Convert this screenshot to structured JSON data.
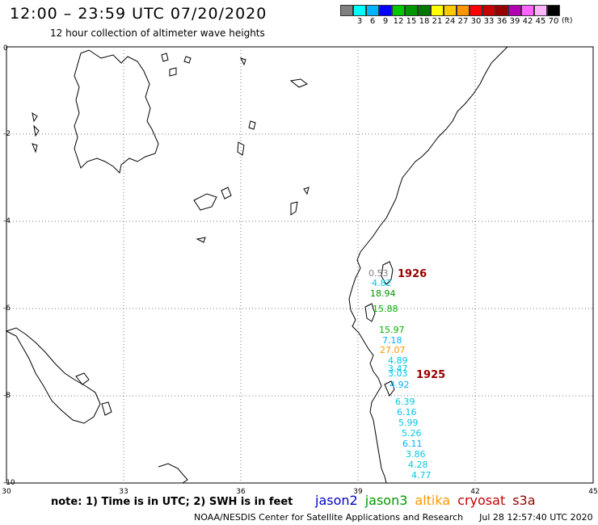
{
  "header": {
    "title": "12:00 – 23:59 UTC 07/20/2020",
    "subtitle": "12 hour collection of altimeter wave heights"
  },
  "colorbar": {
    "colors": [
      "#7f7f7f",
      "#00ffff",
      "#00b4ff",
      "#0000ff",
      "#00c800",
      "#009600",
      "#007800",
      "#ffff00",
      "#ffc800",
      "#ff9600",
      "#ff0000",
      "#c80000",
      "#960000",
      "#b400b4",
      "#ff64ff",
      "#ffb4ff",
      "#000000"
    ],
    "labels": [
      "",
      "3",
      "6",
      "9",
      "12",
      "15",
      "18",
      "21",
      "24",
      "27",
      "30",
      "33",
      "36",
      "39",
      "42",
      "45",
      "70"
    ],
    "units": "(ft)"
  },
  "map": {
    "lat_ticks": [
      "0",
      "-2",
      "-4",
      "-6",
      "-8",
      "-10"
    ],
    "lon_ticks": [
      "30",
      "33",
      "36",
      "39",
      "42",
      "45"
    ],
    "wave_labels": [
      {
        "text": "0.53",
        "color": "#7f7f7f"
      },
      {
        "text": "4.82",
        "color": "#00c8e6"
      },
      {
        "text": "18.94",
        "color": "#009600"
      },
      {
        "text": "15.88",
        "color": "#00b400"
      },
      {
        "text": "15.97",
        "color": "#00b400"
      },
      {
        "text": "7.18",
        "color": "#00b4ff"
      },
      {
        "text": "27.07",
        "color": "#ff9600"
      },
      {
        "text": "4.89",
        "color": "#00c8e6"
      },
      {
        "text": "3.47",
        "color": "#00c8e6"
      },
      {
        "text": "3.03",
        "color": "#00c8e6"
      },
      {
        "text": "4.92",
        "color": "#00b4ff"
      },
      {
        "text": "6.39",
        "color": "#00c8e6"
      },
      {
        "text": "6.16",
        "color": "#00c8e6"
      },
      {
        "text": "5.99",
        "color": "#00c8e6"
      },
      {
        "text": "5.26",
        "color": "#00c8e6"
      },
      {
        "text": "6.11",
        "color": "#00b4ff"
      },
      {
        "text": "3.86",
        "color": "#00c8e6"
      },
      {
        "text": "4.28",
        "color": "#00c8e6"
      },
      {
        "text": "4.77",
        "color": "#00c8e6"
      }
    ],
    "time_labels": [
      {
        "text": "1926",
        "color": "#960000"
      },
      {
        "text": "1925",
        "color": "#960000"
      }
    ]
  },
  "footer": {
    "note": "note: 1) Time is in UTC; 2) SWH is in feet",
    "satellites": [
      {
        "name": "jason2",
        "color": "#0000c8"
      },
      {
        "name": "jason3",
        "color": "#009600"
      },
      {
        "name": "altika",
        "color": "#ff9600"
      },
      {
        "name": "cryosat",
        "color": "#c80000"
      },
      {
        "name": "s3a",
        "color": "#960000"
      }
    ],
    "credit": "NOAA/NESDIS Center for Satellite Applications and Research",
    "timestamp": "Jul 28 12:57:40 UTC 2020"
  }
}
